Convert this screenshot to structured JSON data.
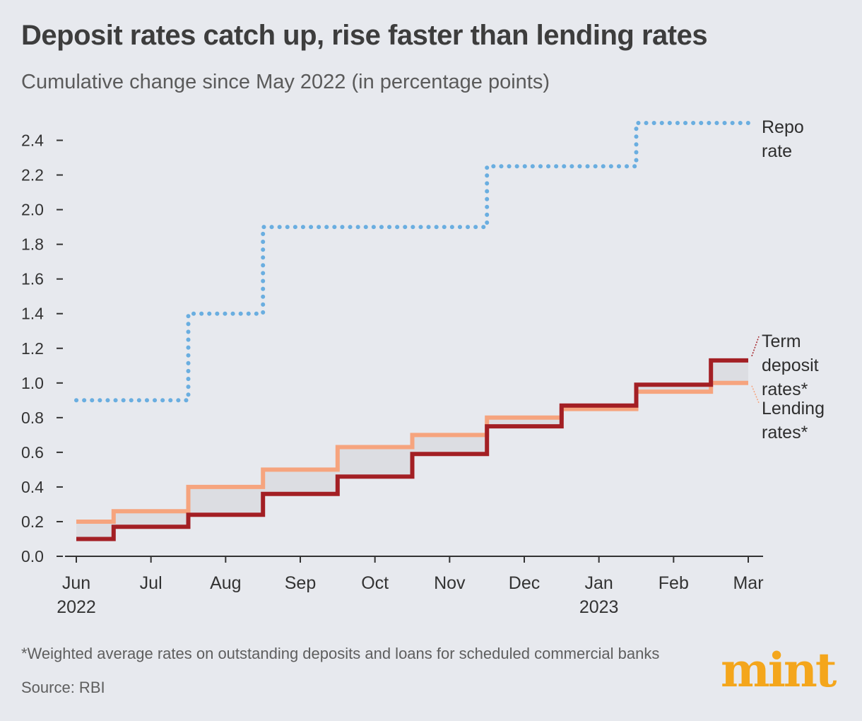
{
  "title": "Deposit rates catch up, rise faster than lending rates",
  "subtitle": "Cumulative change since May 2022 (in percentage points)",
  "footnote": "*Weighted average rates on outstanding deposits and loans for scheduled commercial banks",
  "source": "Source: RBI",
  "brand": "mint",
  "chart_data": {
    "type": "line",
    "step": true,
    "ylim": [
      0,
      2.5
    ],
    "yticks": [
      "0.0",
      "0.2",
      "0.4",
      "0.6",
      "0.8",
      "1.0",
      "1.2",
      "1.4",
      "1.6",
      "1.8",
      "2.0",
      "2.2",
      "2.4"
    ],
    "x_tick_labels": [
      [
        "Jun",
        "2022"
      ],
      [
        "Jul",
        ""
      ],
      [
        "Aug",
        ""
      ],
      [
        "Sep",
        ""
      ],
      [
        "Oct",
        ""
      ],
      [
        "Nov",
        ""
      ],
      [
        "Dec",
        ""
      ],
      [
        "Jan",
        "2023"
      ],
      [
        "Feb",
        ""
      ],
      [
        "Mar",
        ""
      ]
    ],
    "x": [
      "Jun 2022",
      "Jul 2022",
      "Aug 2022",
      "Sep 2022",
      "Oct 2022",
      "Nov 2022",
      "Dec 2022",
      "Jan 2023",
      "Feb 2023",
      "Mar 2023"
    ],
    "grid": false,
    "series": [
      {
        "name": "Repo rate",
        "label_lines": [
          "Repo",
          "rate"
        ],
        "style": "dotted",
        "color": "#6aaee0",
        "values": [
          0.9,
          0.9,
          1.4,
          1.9,
          1.9,
          1.9,
          2.25,
          2.25,
          2.5,
          2.5
        ]
      },
      {
        "name": "Lending rates*",
        "label_lines": [
          "Lending",
          "rates*"
        ],
        "style": "solid",
        "color": "#f6a47e",
        "values": [
          0.2,
          0.26,
          0.4,
          0.5,
          0.63,
          0.7,
          0.8,
          0.85,
          0.95,
          1.0
        ]
      },
      {
        "name": "Term deposit rates*",
        "label_lines": [
          "Term",
          "deposit",
          "rates*"
        ],
        "style": "solid",
        "color": "#a31f24",
        "values": [
          0.1,
          0.17,
          0.24,
          0.36,
          0.46,
          0.59,
          0.75,
          0.87,
          0.99,
          1.13
        ]
      }
    ],
    "shaded_area_between": [
      "Lending rates*",
      "Term deposit rates*"
    ]
  }
}
